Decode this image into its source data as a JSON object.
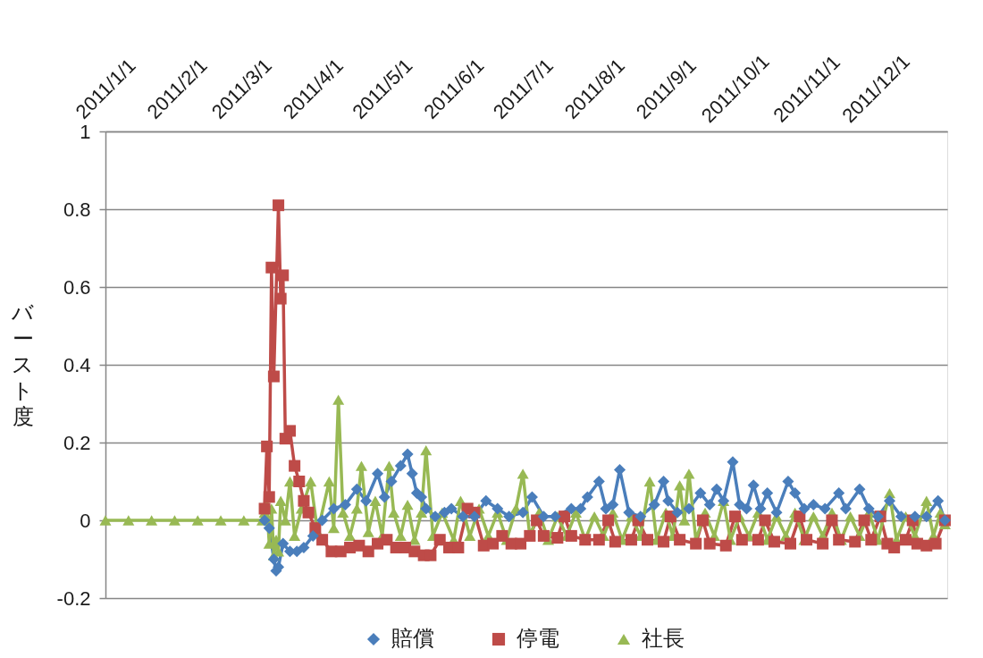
{
  "chart_data": {
    "type": "line",
    "ylabel": "バースト度",
    "xlim": [
      "2011-01-01",
      "2012-01-01"
    ],
    "xticks": [
      {
        "value": "2011-01-01",
        "label": "2011/1/1"
      },
      {
        "value": "2011-02-01",
        "label": "2011/2/1"
      },
      {
        "value": "2011-03-01",
        "label": "2011/3/1"
      },
      {
        "value": "2011-04-01",
        "label": "2011/4/1"
      },
      {
        "value": "2011-05-01",
        "label": "2011/5/1"
      },
      {
        "value": "2011-06-01",
        "label": "2011/6/1"
      },
      {
        "value": "2011-07-01",
        "label": "2011/7/1"
      },
      {
        "value": "2011-08-01",
        "label": "2011/8/1"
      },
      {
        "value": "2011-09-01",
        "label": "2011/9/1"
      },
      {
        "value": "2011-10-01",
        "label": "2011/10/1"
      },
      {
        "value": "2011-11-01",
        "label": "2011/11/1"
      },
      {
        "value": "2011-12-01",
        "label": "2011/12/1"
      }
    ],
    "ylim": [
      -0.2,
      1
    ],
    "yticks": [
      -0.2,
      0,
      0.2,
      0.4,
      0.6,
      0.8,
      1
    ],
    "grid": "y",
    "legend": "bottom",
    "series": [
      {
        "name": "賠償",
        "color": "#4a7ebb",
        "marker": "diamond",
        "x": [
          "2011-03-11",
          "2011-03-13",
          "2011-03-15",
          "2011-03-16",
          "2011-03-17",
          "2011-03-19",
          "2011-03-22",
          "2011-03-25",
          "2011-03-28",
          "2011-04-01",
          "2011-04-05",
          "2011-04-10",
          "2011-04-15",
          "2011-04-20",
          "2011-04-24",
          "2011-04-29",
          "2011-05-02",
          "2011-05-05",
          "2011-05-09",
          "2011-05-12",
          "2011-05-14",
          "2011-05-16",
          "2011-05-18",
          "2011-05-20",
          "2011-05-24",
          "2011-05-28",
          "2011-05-31",
          "2011-06-05",
          "2011-06-10",
          "2011-06-15",
          "2011-06-20",
          "2011-06-25",
          "2011-07-01",
          "2011-07-05",
          "2011-07-10",
          "2011-07-15",
          "2011-07-22",
          "2011-07-26",
          "2011-07-29",
          "2011-08-03",
          "2011-08-06",
          "2011-08-09",
          "2011-08-12",
          "2011-08-16",
          "2011-08-21",
          "2011-08-27",
          "2011-08-31",
          "2011-09-02",
          "2011-09-06",
          "2011-09-11",
          "2011-09-16",
          "2011-09-20",
          "2011-09-23",
          "2011-09-26",
          "2011-09-30",
          "2011-10-03",
          "2011-10-06",
          "2011-10-09",
          "2011-10-12",
          "2011-10-15",
          "2011-10-19",
          "2011-10-24",
          "2011-10-27",
          "2011-10-31",
          "2011-11-04",
          "2011-11-09",
          "2011-11-15",
          "2011-11-18",
          "2011-11-24",
          "2011-11-28",
          "2011-12-02",
          "2011-12-07",
          "2011-12-12",
          "2011-12-18",
          "2011-12-23",
          "2011-12-28",
          "2011-12-31"
        ],
        "values": [
          0,
          -0.02,
          -0.1,
          -0.13,
          -0.12,
          -0.06,
          -0.08,
          -0.08,
          -0.07,
          -0.04,
          0,
          0.03,
          0.04,
          0.08,
          0.05,
          0.12,
          0.06,
          0.1,
          0.14,
          0.17,
          0.12,
          0.07,
          0.06,
          0.03,
          0.01,
          0.02,
          0.03,
          0.01,
          0.01,
          0.05,
          0.03,
          0.01,
          0.02,
          0.06,
          0.01,
          0.01,
          0.03,
          0.03,
          0.06,
          0.1,
          0.03,
          0.04,
          0.13,
          0.02,
          0.01,
          0.04,
          0.1,
          0.05,
          0.02,
          0.03,
          0.07,
          0.04,
          0.08,
          0.05,
          0.15,
          0.04,
          0.03,
          0.09,
          0.03,
          0.07,
          0.02,
          0.1,
          0.07,
          0.03,
          0.04,
          0.03,
          0.07,
          0.03,
          0.08,
          0.03,
          0.01,
          0.05,
          0.01,
          0.01,
          0.01,
          0.05,
          0
        ]
      },
      {
        "name": "停電",
        "color": "#be4b48",
        "marker": "square",
        "x": [
          "2011-03-11",
          "2011-03-12",
          "2011-03-13",
          "2011-03-14",
          "2011-03-15",
          "2011-03-17",
          "2011-03-18",
          "2011-03-19",
          "2011-03-20",
          "2011-03-22",
          "2011-03-24",
          "2011-03-26",
          "2011-03-28",
          "2011-03-30",
          "2011-04-02",
          "2011-04-05",
          "2011-04-09",
          "2011-04-13",
          "2011-04-17",
          "2011-04-21",
          "2011-04-25",
          "2011-04-29",
          "2011-05-03",
          "2011-05-07",
          "2011-05-11",
          "2011-05-15",
          "2011-05-19",
          "2011-05-22",
          "2011-05-26",
          "2011-05-30",
          "2011-06-03",
          "2011-06-07",
          "2011-06-10",
          "2011-06-14",
          "2011-06-18",
          "2011-06-22",
          "2011-06-26",
          "2011-06-30",
          "2011-07-04",
          "2011-07-07",
          "2011-07-10",
          "2011-07-16",
          "2011-07-19",
          "2011-07-22",
          "2011-07-28",
          "2011-08-03",
          "2011-08-07",
          "2011-08-10",
          "2011-08-17",
          "2011-08-20",
          "2011-08-24",
          "2011-08-31",
          "2011-09-03",
          "2011-09-07",
          "2011-09-14",
          "2011-09-17",
          "2011-09-20",
          "2011-09-27",
          "2011-10-01",
          "2011-10-04",
          "2011-10-11",
          "2011-10-14",
          "2011-10-18",
          "2011-10-25",
          "2011-10-29",
          "2011-11-01",
          "2011-11-08",
          "2011-11-12",
          "2011-11-15",
          "2011-11-22",
          "2011-11-26",
          "2011-11-29",
          "2011-12-03",
          "2011-12-06",
          "2011-12-09",
          "2011-12-14",
          "2011-12-17",
          "2011-12-19",
          "2011-12-23",
          "2011-12-27",
          "2011-12-31"
        ],
        "values": [
          0.03,
          0.19,
          0.06,
          0.65,
          0.37,
          0.81,
          0.57,
          0.63,
          0.21,
          0.23,
          0.14,
          0.1,
          0.05,
          0.02,
          -0.02,
          -0.05,
          -0.08,
          -0.08,
          -0.07,
          -0.065,
          -0.08,
          -0.06,
          -0.05,
          -0.07,
          -0.07,
          -0.08,
          -0.09,
          -0.09,
          -0.05,
          -0.07,
          -0.07,
          0.03,
          0.02,
          -0.065,
          -0.06,
          -0.04,
          -0.06,
          -0.06,
          -0.04,
          0,
          -0.04,
          -0.045,
          0.01,
          -0.04,
          -0.05,
          -0.05,
          0,
          -0.055,
          -0.05,
          0,
          -0.05,
          -0.055,
          0.01,
          -0.05,
          -0.06,
          0,
          -0.06,
          -0.065,
          0.01,
          -0.05,
          -0.05,
          0,
          -0.055,
          -0.06,
          0.01,
          -0.05,
          -0.06,
          0,
          -0.05,
          -0.055,
          0,
          -0.05,
          0.01,
          -0.06,
          -0.07,
          -0.05,
          0,
          -0.06,
          -0.065,
          -0.06,
          0
        ]
      },
      {
        "name": "社長",
        "color": "#98b954",
        "marker": "triangle",
        "x": [
          "2011-01-01",
          "2011-01-11",
          "2011-01-21",
          "2011-01-31",
          "2011-02-10",
          "2011-02-20",
          "2011-03-02",
          "2011-03-10",
          "2011-03-11",
          "2011-03-12",
          "2011-03-13",
          "2011-03-14",
          "2011-03-15",
          "2011-03-16",
          "2011-03-17",
          "2011-03-18",
          "2011-03-20",
          "2011-03-22",
          "2011-03-24",
          "2011-03-27",
          "2011-03-31",
          "2011-04-03",
          "2011-04-08",
          "2011-04-10",
          "2011-04-12",
          "2011-04-14",
          "2011-04-17",
          "2011-04-20",
          "2011-04-22",
          "2011-04-25",
          "2011-04-28",
          "2011-05-01",
          "2011-05-04",
          "2011-05-06",
          "2011-05-09",
          "2011-05-12",
          "2011-05-15",
          "2011-05-18",
          "2011-05-20",
          "2011-05-23",
          "2011-05-27",
          "2011-06-01",
          "2011-06-04",
          "2011-06-08",
          "2011-06-12",
          "2011-06-16",
          "2011-06-20",
          "2011-06-24",
          "2011-06-28",
          "2011-07-01",
          "2011-07-04",
          "2011-07-08",
          "2011-07-12",
          "2011-07-16",
          "2011-07-20",
          "2011-07-24",
          "2011-07-28",
          "2011-08-01",
          "2011-08-05",
          "2011-08-09",
          "2011-08-13",
          "2011-08-17",
          "2011-08-21",
          "2011-08-25",
          "2011-08-28",
          "2011-09-01",
          "2011-09-04",
          "2011-09-07",
          "2011-09-09",
          "2011-09-11",
          "2011-09-14",
          "2011-09-18",
          "2011-09-22",
          "2011-09-26",
          "2011-09-29",
          "2011-10-03",
          "2011-10-07",
          "2011-10-11",
          "2011-10-15",
          "2011-10-19",
          "2011-10-23",
          "2011-10-27",
          "2011-10-31",
          "2011-11-04",
          "2011-11-08",
          "2011-11-12",
          "2011-11-16",
          "2011-11-20",
          "2011-11-24",
          "2011-11-28",
          "2011-12-02",
          "2011-12-07",
          "2011-12-10",
          "2011-12-14",
          "2011-12-18",
          "2011-12-23",
          "2011-12-26",
          "2011-12-29",
          "2011-12-31"
        ],
        "values": [
          0,
          0,
          0,
          0,
          0,
          0,
          0,
          0,
          0.02,
          0.04,
          -0.06,
          0.03,
          -0.09,
          -0.05,
          -0.08,
          0.05,
          0,
          0.1,
          -0.04,
          0.03,
          0.1,
          -0.03,
          0.1,
          -0.02,
          0.31,
          0.02,
          -0.04,
          0.03,
          0.14,
          -0.03,
          0.05,
          -0.04,
          0.14,
          0.02,
          -0.04,
          0.04,
          -0.05,
          0.02,
          0.18,
          -0.04,
          0.02,
          -0.05,
          0.05,
          -0.04,
          0.03,
          -0.04,
          0.02,
          -0.05,
          0.03,
          0.12,
          -0.04,
          0.02,
          -0.05,
          0.01,
          -0.04,
          0.02,
          -0.05,
          0.01,
          -0.04,
          0.02,
          -0.05,
          0.01,
          -0.04,
          0.1,
          -0.05,
          0.02,
          -0.04,
          0.09,
          0,
          0.12,
          -0.05,
          0.02,
          -0.04,
          0.05,
          -0.05,
          0.01,
          -0.04,
          0.02,
          -0.05,
          0.01,
          -0.04,
          0.02,
          -0.05,
          0.01,
          -0.04,
          0.02,
          -0.05,
          0.01,
          -0.04,
          0.02,
          -0.05,
          0.07,
          -0.05,
          0.01,
          -0.04,
          0.05,
          -0.04,
          0.02,
          -0.01
        ]
      }
    ]
  }
}
